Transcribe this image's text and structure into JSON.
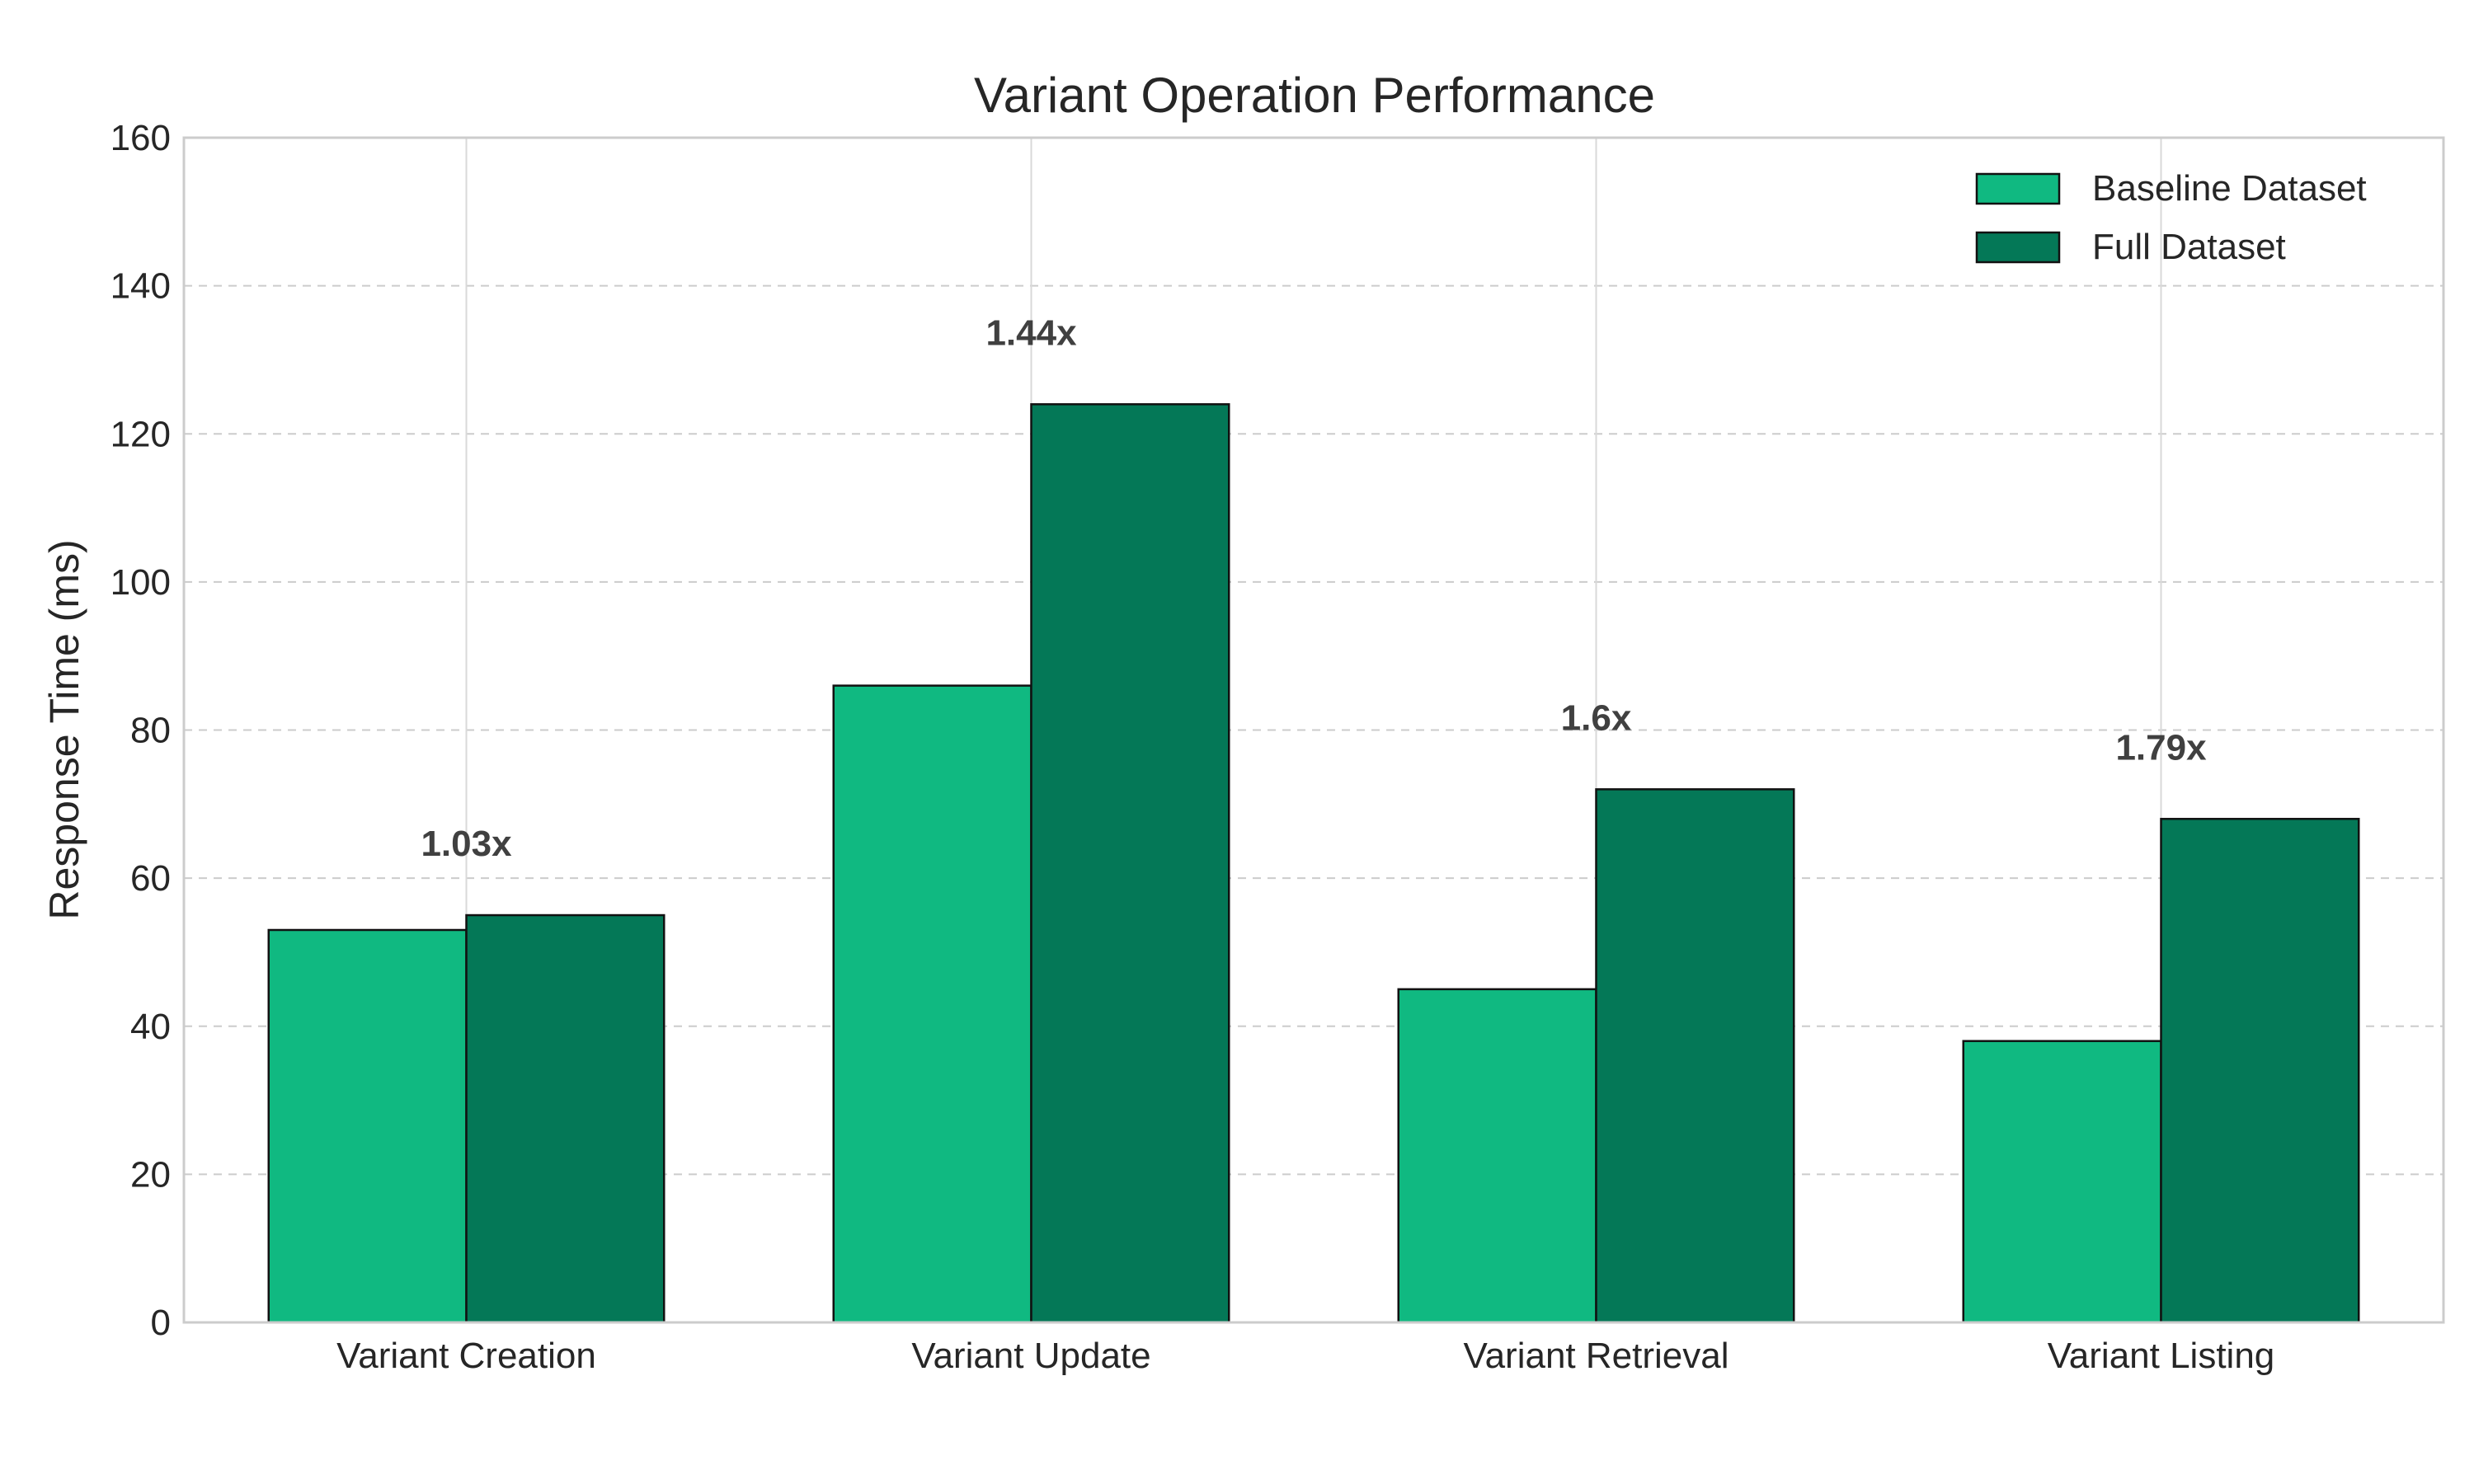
{
  "chart_data": {
    "type": "bar",
    "title": "Variant Operation Performance",
    "xlabel": "",
    "ylabel": "Response Time (ms)",
    "ylim": [
      0,
      160
    ],
    "yticks": [
      0,
      20,
      40,
      60,
      80,
      100,
      120,
      140,
      160
    ],
    "categories": [
      "Variant Creation",
      "Variant Update",
      "Variant Retrieval",
      "Variant Listing"
    ],
    "series": [
      {
        "name": "Baseline Dataset",
        "color": "#10b981",
        "values": [
          53,
          86,
          45,
          38
        ]
      },
      {
        "name": "Full Dataset",
        "color": "#047857",
        "values": [
          55,
          124,
          72,
          68
        ]
      }
    ],
    "annotations": [
      "1.03x",
      "1.44x",
      "1.6x",
      "1.79x"
    ],
    "grid": {
      "x": true,
      "y": true,
      "y_style": "dashed"
    },
    "legend_position": "top-right"
  }
}
